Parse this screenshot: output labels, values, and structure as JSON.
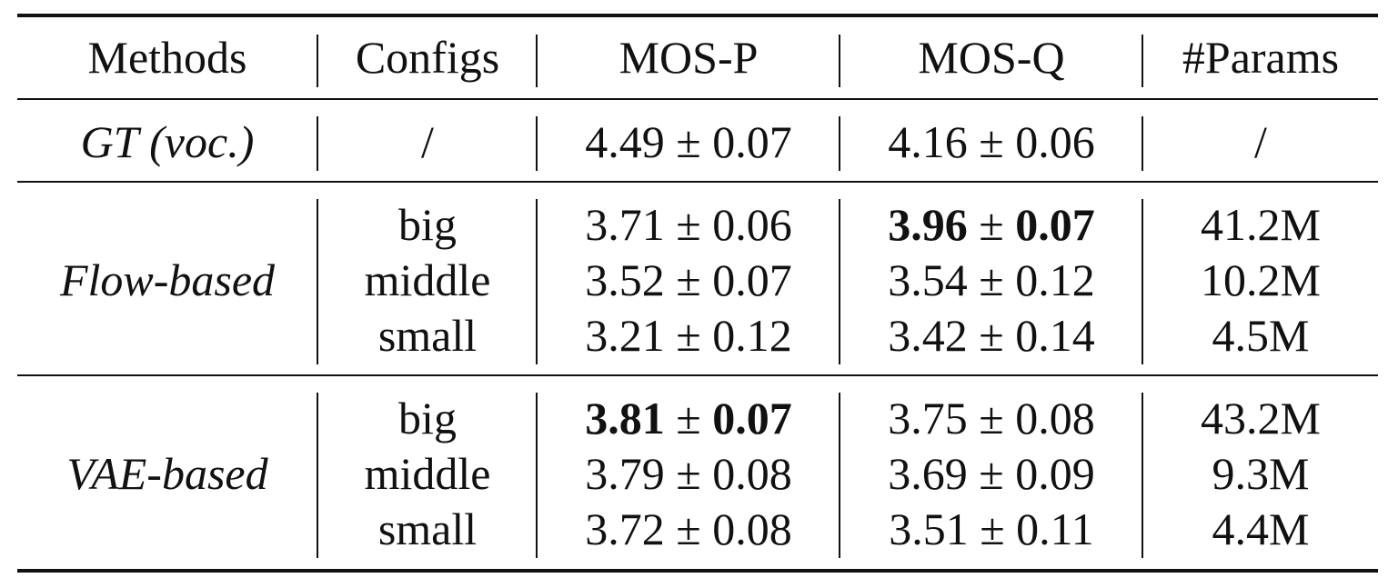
{
  "table": {
    "headers": [
      "Methods",
      "Configs",
      "MOS-P",
      "MOS-Q",
      "#Params"
    ],
    "pm_symbol": "±",
    "gt": {
      "method": "GT (voc.)",
      "config": "/",
      "mos_p": {
        "mean": "4.49",
        "std": "0.07"
      },
      "mos_q": {
        "mean": "4.16",
        "std": "0.06"
      },
      "params": "/"
    },
    "groups": [
      {
        "method": "Flow-based",
        "rows": [
          {
            "config": "big",
            "mos_p": {
              "mean": "3.71",
              "std": "0.06"
            },
            "mos_q": {
              "mean": "3.96",
              "std": "0.07"
            },
            "params": "41.2M"
          },
          {
            "config": "middle",
            "mos_p": {
              "mean": "3.52",
              "std": "0.07"
            },
            "mos_q": {
              "mean": "3.54",
              "std": "0.12"
            },
            "params": "10.2M"
          },
          {
            "config": "small",
            "mos_p": {
              "mean": "3.21",
              "std": "0.12"
            },
            "mos_q": {
              "mean": "3.42",
              "std": "0.14"
            },
            "params": "4.5M"
          }
        ]
      },
      {
        "method": "VAE-based",
        "rows": [
          {
            "config": "big",
            "mos_p": {
              "mean": "3.81",
              "std": "0.07"
            },
            "mos_q": {
              "mean": "3.75",
              "std": "0.08"
            },
            "params": "43.2M"
          },
          {
            "config": "middle",
            "mos_p": {
              "mean": "3.79",
              "std": "0.08"
            },
            "mos_q": {
              "mean": "3.69",
              "std": "0.09"
            },
            "params": "9.3M"
          },
          {
            "config": "small",
            "mos_p": {
              "mean": "3.72",
              "std": "0.08"
            },
            "mos_q": {
              "mean": "3.51",
              "std": "0.11"
            },
            "params": "4.4M"
          }
        ]
      }
    ]
  }
}
